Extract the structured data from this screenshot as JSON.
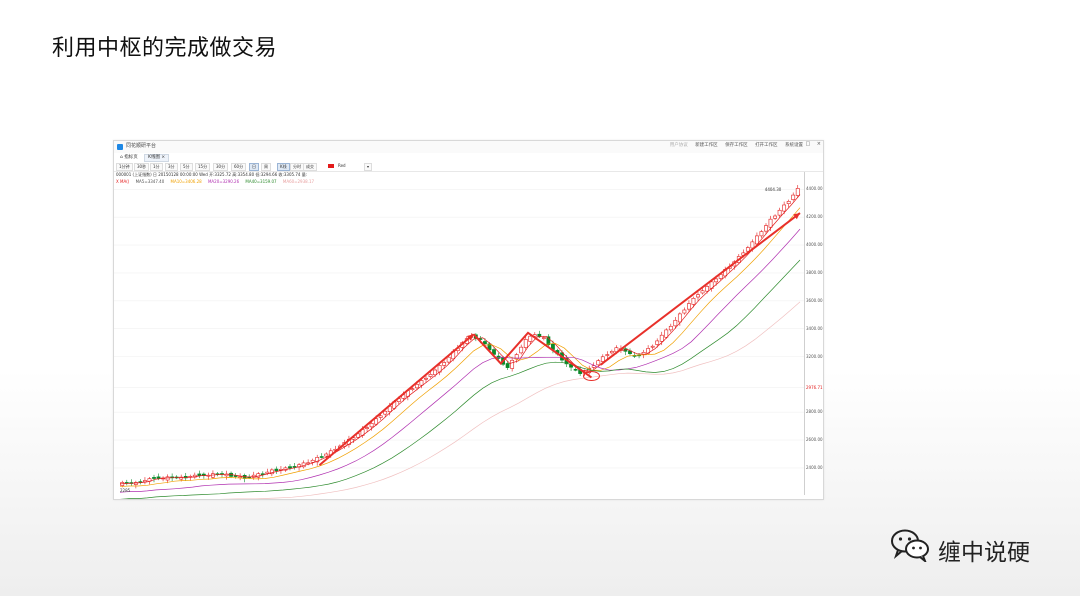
{
  "slide": {
    "title": "利用中枢的完成做交易",
    "brand": "缠中说硬",
    "brand_icon": "wechat-icon"
  },
  "app": {
    "name": "同花顺研平台",
    "toolbar_links": [
      "新建工作区",
      "保存工作区",
      "打开工作区",
      "系统设置"
    ],
    "toolbar_link_muted": "用户协议",
    "tabs": [
      {
        "label": "指标页",
        "icon": "home-icon"
      },
      {
        "label": "K线图",
        "active": true
      }
    ],
    "periods": [
      "1分钟",
      "30秒",
      "1分",
      "3分",
      "5分",
      "15分",
      "30分",
      "60分",
      "日",
      "周",
      "月",
      "季",
      "年"
    ],
    "active_period": "日",
    "chart_types": [
      "K线",
      "分时",
      "成交"
    ],
    "color_label": "Red",
    "color_value": "#e31b1b",
    "info_line": "000001 (上证指数) 日 20150128 00:00:00 Wed  开:3325.72 高:3354.80 低:3294.66 收:3305.74 量:",
    "ma_line": {
      "prefix": "X  MA()",
      "ma5": "MA5=3347.40",
      "ma10": "MA10=3406.28",
      "ma20": "MA20=3290.26",
      "ma40": "MA40=3159.07",
      "ma60": "MA60=2938.17",
      "colors": {
        "ma5": "#e31b1b",
        "ma10": "#f0a000",
        "ma20": "#b030b0",
        "ma40": "#2e8b2e",
        "ma60": "#f0c0c0"
      }
    }
  },
  "chart_data": {
    "type": "candlestick",
    "title": "",
    "y_ticks": [
      "4400.00",
      "4200.00",
      "4000.00",
      "3800.00",
      "3600.00",
      "3400.00",
      "3200.00",
      "2976.71",
      "2800.00",
      "2600.00",
      "2400.00"
    ],
    "current_price_label": "2976.71",
    "high_annotation": "4404.30",
    "low_annotation": "2285",
    "ylim": [
      2220,
      4460
    ],
    "close_path": [
      2285,
      2295,
      2290,
      2310,
      2330,
      2325,
      2335,
      2328,
      2340,
      2350,
      2345,
      2360,
      2350,
      2340,
      2330,
      2345,
      2360,
      2380,
      2390,
      2405,
      2420,
      2440,
      2470,
      2500,
      2540,
      2580,
      2620,
      2670,
      2720,
      2780,
      2840,
      2900,
      2950,
      3000,
      3050,
      3100,
      3160,
      3230,
      3300,
      3350,
      3320,
      3250,
      3180,
      3120,
      3220,
      3320,
      3360,
      3330,
      3250,
      3180,
      3120,
      3080,
      3110,
      3170,
      3220,
      3260,
      3240,
      3200,
      3230,
      3280,
      3350,
      3420,
      3500,
      3580,
      3650,
      3700,
      3760,
      3820,
      3880,
      3950,
      4020,
      4100,
      4180,
      4250,
      4320,
      4404
    ],
    "annotations": {
      "up_arrows": 2,
      "zigzag": "down-up-down",
      "circled_low": "red ellipse at pullback low"
    },
    "grid": true
  }
}
